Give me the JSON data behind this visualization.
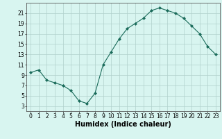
{
  "x": [
    0,
    1,
    2,
    3,
    4,
    5,
    6,
    7,
    8,
    9,
    10,
    11,
    12,
    13,
    14,
    15,
    16,
    17,
    18,
    19,
    20,
    21,
    22,
    23
  ],
  "y": [
    9.5,
    10,
    8,
    7.5,
    7,
    6,
    4,
    3.5,
    5.5,
    11,
    13.5,
    16,
    18,
    19,
    20,
    21.5,
    22,
    21.5,
    21,
    20,
    18.5,
    17,
    14.5,
    13
  ],
  "xlabel": "Humidex (Indice chaleur)",
  "line_color": "#1a6b5a",
  "marker": "D",
  "marker_size": 2,
  "bg_color": "#d8f5f0",
  "grid_color": "#b0d0cc",
  "xlim": [
    -0.5,
    23.5
  ],
  "ylim": [
    2,
    23
  ],
  "yticks": [
    3,
    5,
    7,
    9,
    11,
    13,
    15,
    17,
    19,
    21
  ],
  "xticks": [
    0,
    1,
    2,
    3,
    4,
    5,
    6,
    7,
    8,
    9,
    10,
    11,
    12,
    13,
    14,
    15,
    16,
    17,
    18,
    19,
    20,
    21,
    22,
    23
  ],
  "tick_fontsize": 5.5,
  "xlabel_fontsize": 7
}
